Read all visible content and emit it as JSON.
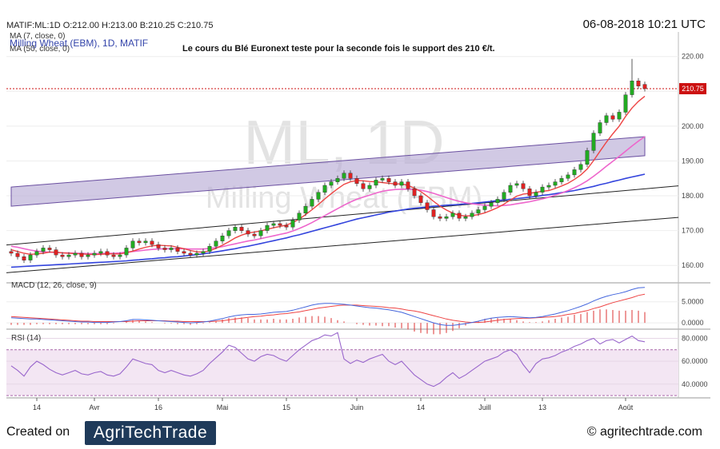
{
  "header": {
    "quote": "MATIF:ML:1D O:212.00 H:213.00 B:210.25 C:210.75",
    "datetime": "06-08-2018 10:21 UTC"
  },
  "footer": {
    "created_on": "Created on",
    "logo_text": "AgriTechTrade",
    "website": "© agritechtrade.com"
  },
  "colors": {
    "up": "#22aa22",
    "down": "#dd2222",
    "ma7": "#ee4444",
    "ma20": "#ee66cc",
    "ma50": "#3344dd",
    "channel_fill": "#b9acd6",
    "macd": "#4466dd",
    "signal": "#ee4444",
    "rsi": "#9966cc",
    "rsi_band": "#f3e6f3"
  },
  "chart_data": [
    {
      "type": "candlestick",
      "panel": "price",
      "watermark_symbol": "ML, 1D",
      "watermark_name": "Milling Wheat (EBM)",
      "legend": [
        "MA (7, close, 0)",
        "Milling Wheat (EBM), 1D, MATIF",
        "MA (50, close, 0)"
      ],
      "title": "Le cours du Blé Euronext teste pour la seconde fois le support des 210 €/t.",
      "last_price_label": "210.75",
      "last_price": 210.75,
      "ylim": [
        155,
        222
      ],
      "y_ticks": [
        160,
        170,
        180,
        190,
        200,
        210,
        220
      ],
      "y_tick_labels": [
        "160.00",
        "170.00",
        "180.00",
        "190.00",
        "200.00",
        "210.00",
        "220.00"
      ],
      "x_ticks": [
        {
          "label": "14",
          "i": 4
        },
        {
          "label": "Avr",
          "i": 13
        },
        {
          "label": "16",
          "i": 23
        },
        {
          "label": "Mai",
          "i": 33
        },
        {
          "label": "15",
          "i": 43
        },
        {
          "label": "Juin",
          "i": 54
        },
        {
          "label": "14",
          "i": 64
        },
        {
          "label": "Juill",
          "i": 74
        },
        {
          "label": "13",
          "i": 83
        },
        {
          "label": "Août",
          "i": 96
        }
      ],
      "close": [
        163.5,
        162.5,
        161.5,
        163,
        164,
        165,
        164.5,
        163,
        162.5,
        163,
        163.5,
        162.5,
        163,
        163.5,
        164,
        163,
        162.5,
        163,
        165,
        167,
        166.5,
        167,
        166,
        165,
        164.5,
        165,
        164,
        163.5,
        163,
        163.5,
        164,
        165.5,
        167,
        168.5,
        170,
        171,
        170,
        169,
        168.5,
        170,
        171.5,
        172,
        171.5,
        171,
        173,
        175,
        177,
        179,
        181,
        183,
        184,
        185,
        186.5,
        185,
        183.5,
        182,
        183,
        184.5,
        185,
        184,
        183,
        184,
        182,
        180,
        178,
        176,
        174,
        173.5,
        174,
        175,
        173.5,
        174,
        175,
        176,
        177,
        178,
        179,
        181,
        183,
        183.5,
        182,
        180,
        181,
        182.5,
        183,
        184,
        185,
        186,
        187.5,
        189,
        193,
        198,
        201,
        203,
        202,
        204,
        209,
        213,
        211.5,
        210.75
      ],
      "open": [
        164,
        163.5,
        162.5,
        161.5,
        163,
        164,
        165,
        164.5,
        163,
        162.5,
        163,
        163.5,
        162.5,
        163,
        163.5,
        164,
        163,
        162.5,
        163,
        165,
        167,
        166.5,
        167,
        166,
        165,
        164.5,
        165,
        164,
        163.5,
        163,
        163.5,
        164,
        165.5,
        167,
        168.5,
        170,
        171,
        170,
        169,
        168.5,
        170,
        171.5,
        172,
        171.5,
        171,
        173,
        175,
        177,
        179,
        181,
        183,
        184,
        185,
        186.5,
        185,
        183.5,
        182,
        183,
        184.5,
        185,
        184,
        183,
        184,
        182,
        180,
        178,
        176,
        174,
        173.5,
        174,
        175,
        173.5,
        174,
        175,
        176,
        177,
        178,
        179,
        181,
        183,
        183.5,
        182,
        180,
        181,
        182.5,
        183,
        184,
        185,
        186,
        187.5,
        189,
        193,
        198,
        201,
        203,
        202,
        204,
        209,
        213,
        212
      ],
      "ma7": [
        164.5,
        164,
        163.5,
        163.2,
        163.3,
        163.5,
        163.8,
        163.8,
        163.6,
        163.5,
        163.4,
        163.3,
        163.2,
        163.1,
        163.2,
        163.3,
        163.3,
        163.3,
        163.6,
        164.1,
        164.7,
        165.2,
        165.6,
        165.8,
        165.7,
        165.6,
        165.2,
        164.8,
        164.3,
        163.9,
        163.8,
        164.2,
        164.9,
        165.8,
        166.8,
        167.9,
        168.7,
        169.3,
        169.6,
        169.9,
        170.4,
        170.8,
        171.2,
        171.6,
        172.3,
        173.3,
        174.6,
        176,
        177.5,
        179.1,
        180.6,
        182,
        183.3,
        184,
        184.4,
        184.3,
        184.1,
        184,
        183.8,
        183.6,
        183.4,
        183.4,
        183,
        182.2,
        181.2,
        179.9,
        178.4,
        177,
        175.9,
        175,
        174.4,
        174.2,
        174.3,
        174.6,
        175.1,
        175.8,
        176.6,
        177.6,
        178.8,
        179.9,
        180.5,
        180.7,
        181,
        181.3,
        181.5,
        182.1,
        182.8,
        183.6,
        184.7,
        186,
        187.7,
        190.1,
        192.8,
        195.4,
        197.8,
        200,
        202.8,
        205.2,
        207.1,
        208.6
      ],
      "ma20": [
        165.5,
        165.2,
        164.8,
        164.4,
        164.1,
        163.9,
        163.8,
        163.7,
        163.6,
        163.6,
        163.5,
        163.5,
        163.4,
        163.4,
        163.4,
        163.5,
        163.5,
        163.6,
        163.8,
        164,
        164.2,
        164.4,
        164.6,
        164.7,
        164.8,
        164.8,
        164.8,
        164.8,
        164.7,
        164.7,
        164.7,
        164.9,
        165.1,
        165.4,
        165.8,
        166.2,
        166.6,
        167,
        167.3,
        167.7,
        168.1,
        168.5,
        168.9,
        169.3,
        169.9,
        170.6,
        171.4,
        172.3,
        173.3,
        174.3,
        175.3,
        176.3,
        177.3,
        178.2,
        179,
        179.6,
        180.2,
        180.8,
        181.3,
        181.6,
        181.8,
        181.9,
        181.9,
        181.8,
        181.6,
        181.2,
        180.7,
        180.1,
        179.5,
        178.9,
        178.4,
        178,
        177.7,
        177.5,
        177.3,
        177.2,
        177.1,
        177.2,
        177.4,
        177.7,
        178,
        178.3,
        178.7,
        179.1,
        179.6,
        180.2,
        180.8,
        181.5,
        182.3,
        183.2,
        184.3,
        185.6,
        187,
        188.5,
        189.9,
        191.3,
        192.8,
        194.3,
        195.7,
        197
      ],
      "ma50": [
        159.5,
        159.6,
        159.7,
        159.8,
        159.9,
        160,
        160.1,
        160.2,
        160.3,
        160.4,
        160.5,
        160.6,
        160.7,
        160.8,
        160.9,
        161,
        161.1,
        161.2,
        161.3,
        161.5,
        161.6,
        161.8,
        161.9,
        162.1,
        162.2,
        162.4,
        162.5,
        162.7,
        162.9,
        163.1,
        163.3,
        163.6,
        163.9,
        164.2,
        164.5,
        164.8,
        165.2,
        165.5,
        165.9,
        166.3,
        166.7,
        167.1,
        167.5,
        167.9,
        168.4,
        168.8,
        169.3,
        169.8,
        170.3,
        170.8,
        171.3,
        171.8,
        172.3,
        172.8,
        173.3,
        173.7,
        174.1,
        174.5,
        174.9,
        175.3,
        175.6,
        175.9,
        176.2,
        176.4,
        176.6,
        176.8,
        177,
        177.1,
        177.3,
        177.4,
        177.5,
        177.7,
        177.8,
        178,
        178.2,
        178.4,
        178.6,
        178.8,
        179,
        179.2,
        179.4,
        179.6,
        179.8,
        180.1,
        180.3,
        180.6,
        180.9,
        181.2,
        181.5,
        181.9,
        182.3,
        182.7,
        183.2,
        183.6,
        184.1,
        184.5,
        185,
        185.4,
        185.8,
        186.2
      ],
      "channel": {
        "upper_band_top": [
          [
            0,
            182.5
          ],
          [
            99,
            197
          ]
        ],
        "upper_band_bottom": [
          [
            0,
            177
          ],
          [
            99,
            191.5
          ]
        ],
        "line_a": [
          [
            0,
            166
          ],
          [
            99,
            182
          ]
        ],
        "line_b": [
          [
            0,
            158
          ],
          [
            99,
            173
          ]
        ]
      }
    },
    {
      "type": "line",
      "panel": "macd",
      "label": "MACD (12, 26, close, 9)",
      "ylim": [
        -1.5,
        9.5
      ],
      "y_ticks": [
        0,
        5
      ],
      "y_tick_labels": [
        "0.0000",
        "5.0000"
      ],
      "macd": [
        1.2,
        1.1,
        1.0,
        0.9,
        0.9,
        0.8,
        0.7,
        0.6,
        0.5,
        0.4,
        0.3,
        0.2,
        0.2,
        0.1,
        0.1,
        0.1,
        0.2,
        0.3,
        0.5,
        0.8,
        0.8,
        0.7,
        0.6,
        0.5,
        0.4,
        0.3,
        0.2,
        0.1,
        0.0,
        0.1,
        0.2,
        0.4,
        0.7,
        1.0,
        1.4,
        1.7,
        1.9,
        2.0,
        2.0,
        2.1,
        2.3,
        2.5,
        2.6,
        2.7,
        3.0,
        3.4,
        3.8,
        4.2,
        4.5,
        4.6,
        4.6,
        4.5,
        4.4,
        4.2,
        4.0,
        3.8,
        3.6,
        3.5,
        3.3,
        3.1,
        2.8,
        2.5,
        2.0,
        1.5,
        1.0,
        0.5,
        0.0,
        -0.4,
        -0.6,
        -0.6,
        -0.4,
        -0.2,
        0.1,
        0.4,
        0.8,
        1.1,
        1.3,
        1.4,
        1.5,
        1.4,
        1.3,
        1.2,
        1.3,
        1.5,
        1.8,
        2.1,
        2.5,
        2.9,
        3.4,
        3.9,
        4.5,
        5.2,
        5.8,
        6.3,
        6.7,
        7.0,
        7.4,
        7.9,
        8.3,
        8.4
      ],
      "signal": [
        1.5,
        1.4,
        1.3,
        1.2,
        1.1,
        1.0,
        0.9,
        0.8,
        0.7,
        0.6,
        0.5,
        0.4,
        0.4,
        0.3,
        0.3,
        0.3,
        0.3,
        0.3,
        0.3,
        0.4,
        0.5,
        0.5,
        0.5,
        0.5,
        0.5,
        0.4,
        0.4,
        0.3,
        0.3,
        0.3,
        0.3,
        0.3,
        0.4,
        0.5,
        0.7,
        0.9,
        1.1,
        1.3,
        1.5,
        1.6,
        1.8,
        1.9,
        2.1,
        2.2,
        2.4,
        2.6,
        2.9,
        3.2,
        3.5,
        3.7,
        3.9,
        4.1,
        4.2,
        4.2,
        4.2,
        4.1,
        4.0,
        3.9,
        3.8,
        3.6,
        3.5,
        3.3,
        3.0,
        2.8,
        2.5,
        2.1,
        1.7,
        1.3,
        0.9,
        0.6,
        0.4,
        0.2,
        0.1,
        0.1,
        0.2,
        0.4,
        0.6,
        0.8,
        0.9,
        1.0,
        1.1,
        1.1,
        1.2,
        1.3,
        1.4,
        1.5,
        1.7,
        2.0,
        2.2,
        2.6,
        2.9,
        3.4,
        3.8,
        4.3,
        4.8,
        5.2,
        5.6,
        6.0,
        6.5,
        6.8
      ]
    },
    {
      "type": "line",
      "panel": "rsi",
      "label": "RSI (14)",
      "ylim": [
        28,
        88
      ],
      "y_ticks": [
        40,
        60,
        80
      ],
      "y_tick_labels": [
        "40.0000",
        "60.0000",
        "80.0000"
      ],
      "bands": [
        30,
        70
      ],
      "rsi": [
        56,
        52,
        47,
        55,
        60,
        57,
        53,
        50,
        48,
        50,
        52,
        49,
        48,
        50,
        51,
        48,
        47,
        49,
        55,
        62,
        60,
        58,
        57,
        52,
        50,
        52,
        50,
        48,
        47,
        49,
        52,
        58,
        63,
        68,
        74,
        72,
        67,
        62,
        60,
        64,
        66,
        65,
        62,
        60,
        65,
        70,
        74,
        78,
        80,
        83,
        82,
        85,
        62,
        58,
        61,
        59,
        62,
        64,
        66,
        60,
        57,
        60,
        54,
        48,
        44,
        40,
        38,
        41,
        46,
        50,
        45,
        48,
        52,
        56,
        60,
        62,
        64,
        68,
        70,
        66,
        57,
        50,
        58,
        62,
        63,
        65,
        68,
        70,
        73,
        75,
        78,
        80,
        75,
        78,
        79,
        76,
        79,
        82,
        78,
        77
      ]
    }
  ]
}
